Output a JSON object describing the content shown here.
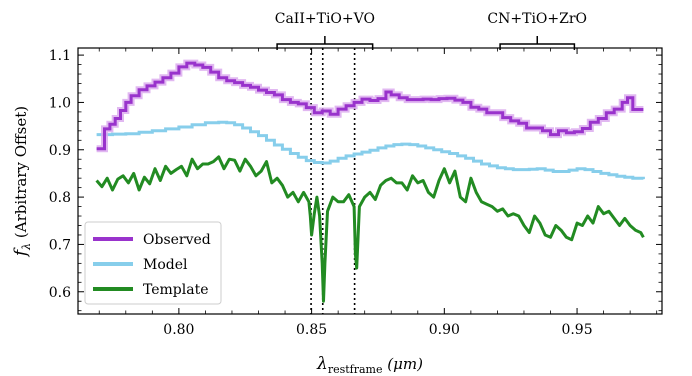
{
  "chart_data": {
    "type": "line",
    "xlabel": "λ",
    "xlabel_sub": "restframe",
    "xlabel_unit": "(μm)",
    "ylabel": "f",
    "ylabel_sub": "λ",
    "ylabel_text": "(Arbitrary Offset)",
    "xlim": [
      0.762,
      0.982
    ],
    "ylim": [
      0.553,
      1.115
    ],
    "xticks": [
      0.8,
      0.85,
      0.9,
      0.95
    ],
    "xtick_labels": [
      "0.80",
      "0.85",
      "0.90",
      "0.95"
    ],
    "yticks": [
      0.6,
      0.7,
      0.8,
      0.9,
      1.0,
      1.1
    ],
    "ytick_labels": [
      "0.6",
      "0.7",
      "0.8",
      "0.9",
      "1.0",
      "1.1"
    ],
    "grid": false,
    "legend_position": "bottom-left",
    "features": [
      {
        "label": "CaII+TiO+VO",
        "x_start": 0.837,
        "x_end": 0.873,
        "lines": [
          0.8498,
          0.8542,
          0.8662
        ]
      },
      {
        "label": "CN+TiO+ZrO",
        "x_start": 0.921,
        "x_end": 0.949,
        "lines": []
      }
    ],
    "series": [
      {
        "name": "Observed",
        "color": "#9933cc",
        "x": [
          0.769,
          0.771,
          0.772,
          0.774,
          0.776,
          0.778,
          0.78,
          0.782,
          0.785,
          0.788,
          0.791,
          0.794,
          0.797,
          0.8,
          0.803,
          0.806,
          0.809,
          0.812,
          0.815,
          0.818,
          0.821,
          0.824,
          0.827,
          0.83,
          0.833,
          0.836,
          0.839,
          0.842,
          0.845,
          0.848,
          0.851,
          0.854,
          0.857,
          0.86,
          0.863,
          0.866,
          0.869,
          0.872,
          0.875,
          0.878,
          0.88,
          0.883,
          0.886,
          0.889,
          0.892,
          0.895,
          0.898,
          0.901,
          0.904,
          0.907,
          0.91,
          0.913,
          0.916,
          0.919,
          0.922,
          0.925,
          0.928,
          0.931,
          0.934,
          0.937,
          0.94,
          0.943,
          0.946,
          0.949,
          0.952,
          0.955,
          0.958,
          0.961,
          0.964,
          0.967,
          0.969,
          0.971,
          0.973,
          0.975
        ],
        "values": [
          0.902,
          0.902,
          0.944,
          0.954,
          0.966,
          0.983,
          1.0,
          1.014,
          1.027,
          1.035,
          1.043,
          1.052,
          1.062,
          1.075,
          1.083,
          1.079,
          1.074,
          1.064,
          1.052,
          1.046,
          1.042,
          1.036,
          1.032,
          1.026,
          1.021,
          1.016,
          1.006,
          1.0,
          0.997,
          0.989,
          0.978,
          0.982,
          0.975,
          0.986,
          0.993,
          1.0,
          1.007,
          1.004,
          1.008,
          1.022,
          1.016,
          1.01,
          1.006,
          1.006,
          1.007,
          1.006,
          1.008,
          1.009,
          1.005,
          1.0,
          0.99,
          0.986,
          0.978,
          0.978,
          0.968,
          0.961,
          0.956,
          0.946,
          0.946,
          0.94,
          0.932,
          0.94,
          0.936,
          0.938,
          0.945,
          0.958,
          0.966,
          0.978,
          0.986,
          1.0,
          1.01,
          0.985,
          0.985,
          0.985
        ]
      },
      {
        "name": "Model",
        "color": "#87ceeb",
        "x": [
          0.769,
          0.775,
          0.78,
          0.785,
          0.79,
          0.795,
          0.8,
          0.805,
          0.81,
          0.815,
          0.818,
          0.821,
          0.824,
          0.827,
          0.83,
          0.833,
          0.836,
          0.839,
          0.842,
          0.845,
          0.848,
          0.851,
          0.854,
          0.857,
          0.86,
          0.863,
          0.866,
          0.869,
          0.872,
          0.875,
          0.878,
          0.881,
          0.884,
          0.887,
          0.89,
          0.893,
          0.896,
          0.899,
          0.902,
          0.905,
          0.908,
          0.911,
          0.914,
          0.917,
          0.92,
          0.923,
          0.926,
          0.929,
          0.932,
          0.935,
          0.938,
          0.941,
          0.944,
          0.947,
          0.95,
          0.953,
          0.956,
          0.959,
          0.962,
          0.965,
          0.968,
          0.971,
          0.975
        ],
        "values": [
          0.932,
          0.933,
          0.934,
          0.937,
          0.94,
          0.944,
          0.948,
          0.953,
          0.957,
          0.958,
          0.957,
          0.953,
          0.946,
          0.938,
          0.93,
          0.92,
          0.91,
          0.901,
          0.892,
          0.884,
          0.877,
          0.873,
          0.872,
          0.876,
          0.882,
          0.887,
          0.891,
          0.895,
          0.899,
          0.904,
          0.908,
          0.911,
          0.912,
          0.911,
          0.908,
          0.904,
          0.9,
          0.896,
          0.892,
          0.887,
          0.882,
          0.876,
          0.87,
          0.866,
          0.862,
          0.86,
          0.858,
          0.858,
          0.859,
          0.86,
          0.857,
          0.854,
          0.854,
          0.857,
          0.86,
          0.858,
          0.854,
          0.85,
          0.847,
          0.844,
          0.842,
          0.84,
          0.838
        ]
      },
      {
        "name": "Template",
        "color": "#228b22",
        "x": [
          0.769,
          0.771,
          0.773,
          0.775,
          0.777,
          0.779,
          0.781,
          0.783,
          0.785,
          0.787,
          0.789,
          0.791,
          0.793,
          0.795,
          0.797,
          0.799,
          0.801,
          0.803,
          0.805,
          0.807,
          0.809,
          0.811,
          0.813,
          0.815,
          0.817,
          0.819,
          0.821,
          0.823,
          0.825,
          0.827,
          0.829,
          0.831,
          0.833,
          0.835,
          0.837,
          0.839,
          0.841,
          0.843,
          0.845,
          0.847,
          0.849,
          0.8495,
          0.85,
          0.851,
          0.852,
          0.853,
          0.854,
          0.8545,
          0.855,
          0.856,
          0.858,
          0.86,
          0.862,
          0.864,
          0.866,
          0.8665,
          0.867,
          0.868,
          0.87,
          0.872,
          0.874,
          0.876,
          0.878,
          0.88,
          0.882,
          0.884,
          0.886,
          0.888,
          0.89,
          0.892,
          0.894,
          0.896,
          0.898,
          0.9,
          0.902,
          0.904,
          0.906,
          0.908,
          0.91,
          0.912,
          0.914,
          0.916,
          0.918,
          0.92,
          0.922,
          0.924,
          0.926,
          0.928,
          0.93,
          0.932,
          0.934,
          0.936,
          0.938,
          0.94,
          0.942,
          0.944,
          0.946,
          0.948,
          0.95,
          0.952,
          0.954,
          0.956,
          0.958,
          0.96,
          0.962,
          0.964,
          0.966,
          0.968,
          0.97,
          0.972,
          0.974,
          0.975
        ],
        "values": [
          0.835,
          0.822,
          0.84,
          0.815,
          0.838,
          0.845,
          0.83,
          0.85,
          0.815,
          0.842,
          0.828,
          0.86,
          0.835,
          0.865,
          0.85,
          0.858,
          0.865,
          0.845,
          0.88,
          0.86,
          0.87,
          0.87,
          0.875,
          0.885,
          0.86,
          0.88,
          0.878,
          0.855,
          0.88,
          0.865,
          0.845,
          0.855,
          0.875,
          0.83,
          0.84,
          0.825,
          0.8,
          0.81,
          0.79,
          0.81,
          0.79,
          0.76,
          0.72,
          0.765,
          0.8,
          0.76,
          0.66,
          0.58,
          0.66,
          0.77,
          0.8,
          0.79,
          0.79,
          0.805,
          0.78,
          0.68,
          0.65,
          0.78,
          0.8,
          0.81,
          0.795,
          0.825,
          0.835,
          0.84,
          0.83,
          0.83,
          0.815,
          0.845,
          0.83,
          0.835,
          0.81,
          0.8,
          0.835,
          0.86,
          0.83,
          0.855,
          0.8,
          0.79,
          0.84,
          0.81,
          0.79,
          0.785,
          0.78,
          0.77,
          0.775,
          0.76,
          0.765,
          0.76,
          0.74,
          0.725,
          0.76,
          0.745,
          0.72,
          0.715,
          0.74,
          0.73,
          0.715,
          0.71,
          0.745,
          0.74,
          0.76,
          0.745,
          0.78,
          0.765,
          0.77,
          0.755,
          0.74,
          0.755,
          0.74,
          0.73,
          0.725,
          0.715
        ]
      }
    ]
  }
}
